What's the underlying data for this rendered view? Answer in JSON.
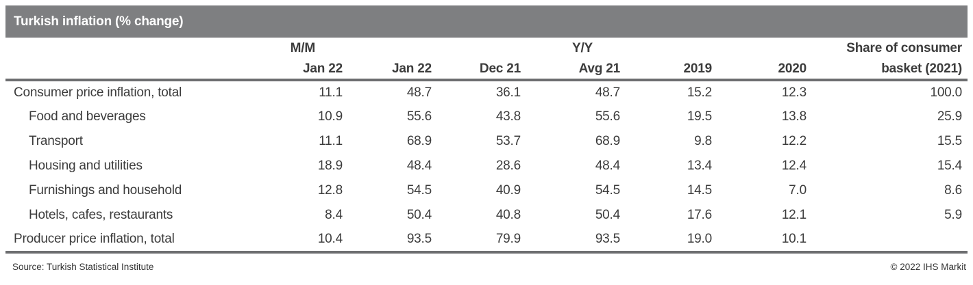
{
  "chart_data": {
    "type": "table",
    "title": "Turkish inflation (% change)",
    "column_groups": {
      "mm": "M/M",
      "yy": "Y/Y",
      "share": "Share of consumer"
    },
    "columns": [
      "Jan 22",
      "Jan 22",
      "Dec 21",
      "Avg 21",
      "2019",
      "2020",
      "basket (2021)"
    ],
    "rows": [
      {
        "label": "Consumer price inflation, total",
        "indent": false,
        "values": [
          "11.1",
          "48.7",
          "36.1",
          "48.7",
          "15.2",
          "12.3",
          "100.0"
        ]
      },
      {
        "label": "Food and beverages",
        "indent": true,
        "values": [
          "10.9",
          "55.6",
          "43.8",
          "55.6",
          "19.5",
          "13.8",
          "25.9"
        ]
      },
      {
        "label": "Transport",
        "indent": true,
        "values": [
          "11.1",
          "68.9",
          "53.7",
          "68.9",
          "9.8",
          "12.2",
          "15.5"
        ]
      },
      {
        "label": "Housing and utilities",
        "indent": true,
        "values": [
          "18.9",
          "48.4",
          "28.6",
          "48.4",
          "13.4",
          "12.4",
          "15.4"
        ]
      },
      {
        "label": "Furnishings and household",
        "indent": true,
        "values": [
          "12.8",
          "54.5",
          "40.9",
          "54.5",
          "14.5",
          "7.0",
          "8.6"
        ]
      },
      {
        "label": "Hotels, cafes, restaurants",
        "indent": true,
        "values": [
          "8.4",
          "50.4",
          "40.8",
          "50.4",
          "17.6",
          "12.1",
          "5.9"
        ]
      },
      {
        "label": "Producer price inflation, total",
        "indent": false,
        "values": [
          "10.4",
          "93.5",
          "79.9",
          "93.5",
          "19.0",
          "10.1",
          ""
        ]
      }
    ]
  },
  "footer": {
    "source": "Source: Turkish Statistical Institute",
    "copyright": "© 2022 IHS Markit"
  },
  "colors": {
    "title_bar_bg": "#7e7f81",
    "rule": "#6d6e70",
    "text": "#3c3c3c",
    "title_text": "#ffffff"
  }
}
